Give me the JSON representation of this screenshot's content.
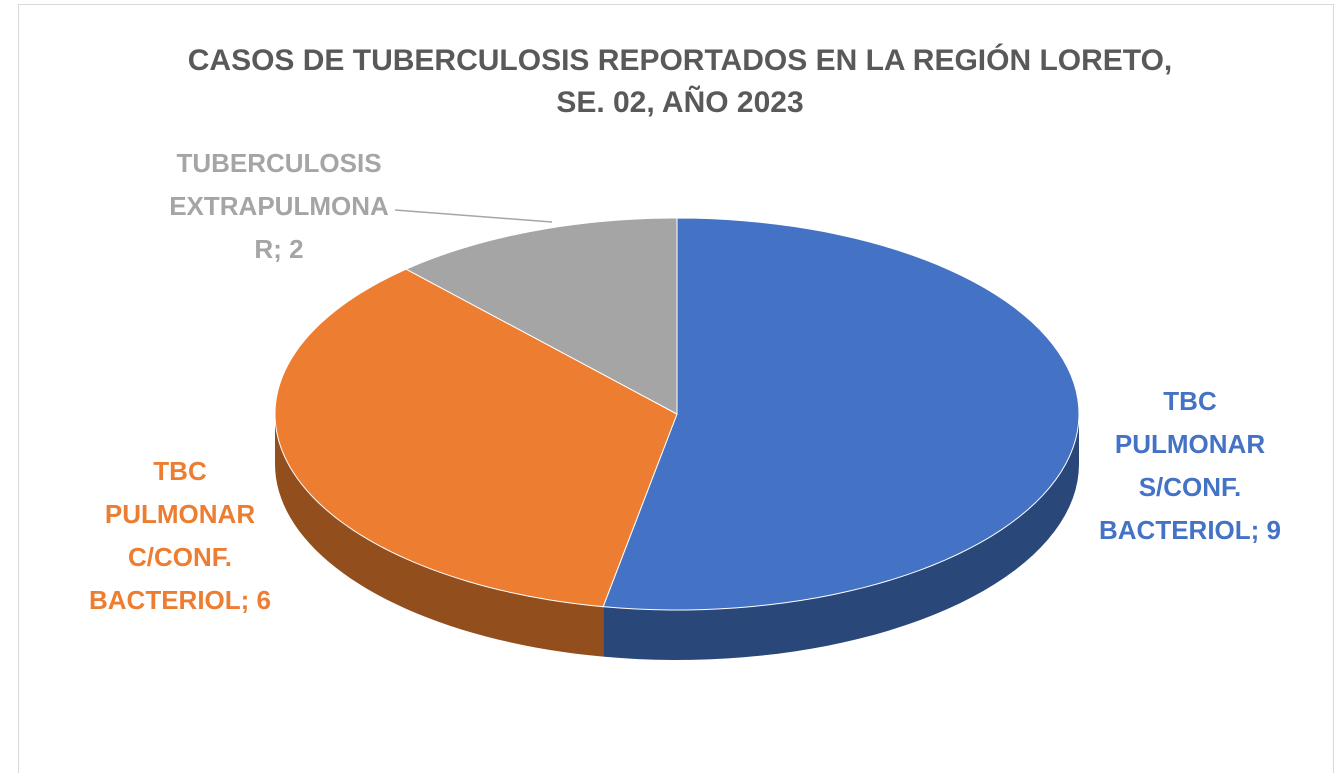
{
  "chart_data": {
    "type": "pie3d",
    "title": "CASOS DE TUBERCULOSIS REPORTADOS EN LA REGIÓN LORETO, SE. 02, AÑO 2023",
    "categories": [
      "TBC PULMONAR S/CONF. BACTERIOL",
      "TBC PULMONAR C/CONF. BACTERIOL",
      "TUBERCULOSIS EXTRAPULMONAR"
    ],
    "values": [
      9,
      6,
      2
    ],
    "colors": [
      "#4472c4",
      "#ed7d31",
      "#a5a5a5"
    ],
    "label_separator": "; "
  }
}
